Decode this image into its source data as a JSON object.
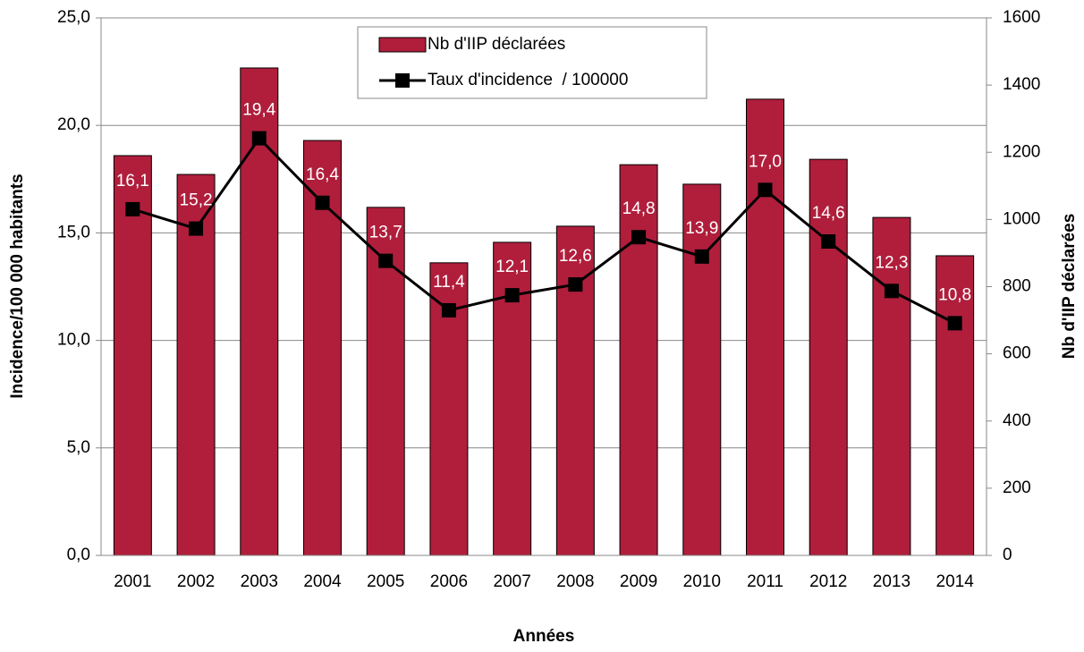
{
  "chart_data": {
    "type": "bar",
    "x_label": "Années",
    "y_label": "Incidence/100 000 habitants",
    "y2_label": "Nb d'IIP déclarées",
    "categories": [
      "2001",
      "2002",
      "2003",
      "2004",
      "2005",
      "2006",
      "2007",
      "2008",
      "2009",
      "2010",
      "2011",
      "2012",
      "2013",
      "2014"
    ],
    "series": [
      {
        "name": "Nb d'IIP déclarées",
        "type": "bar",
        "axis": "y2",
        "color": "#b01e3c",
        "values": [
          1190,
          1134,
          1451,
          1235,
          1036,
          871,
          932,
          980,
          1163,
          1105,
          1358,
          1179,
          1006,
          892
        ]
      },
      {
        "name": "Taux d'incidence  / 100000",
        "type": "line",
        "color": "#000000",
        "values": [
          16.1,
          15.2,
          19.4,
          16.4,
          13.7,
          11.4,
          12.1,
          12.6,
          14.8,
          13.9,
          17.0,
          14.6,
          12.3,
          10.8
        ],
        "value_labels": [
          "16,1",
          "15,2",
          "19,4",
          "16,4",
          "13,7",
          "11,4",
          "12,1",
          "12,6",
          "14,8",
          "13,9",
          "17,0",
          "14,6",
          "12,3",
          "10,8"
        ]
      }
    ],
    "ylim": [
      0,
      25
    ],
    "yticks": [
      {
        "value": 0,
        "label": "0,0"
      },
      {
        "value": 5,
        "label": "5,0"
      },
      {
        "value": 10,
        "label": "10,0"
      },
      {
        "value": 15,
        "label": "15,0"
      },
      {
        "value": 20,
        "label": "20,0"
      },
      {
        "value": 25,
        "label": "25,0"
      }
    ],
    "y2lim": [
      0,
      1600
    ],
    "y2ticks": [
      0,
      200,
      400,
      600,
      800,
      1000,
      1200,
      1400,
      1600
    ],
    "grid": true,
    "legend": "top-center"
  }
}
